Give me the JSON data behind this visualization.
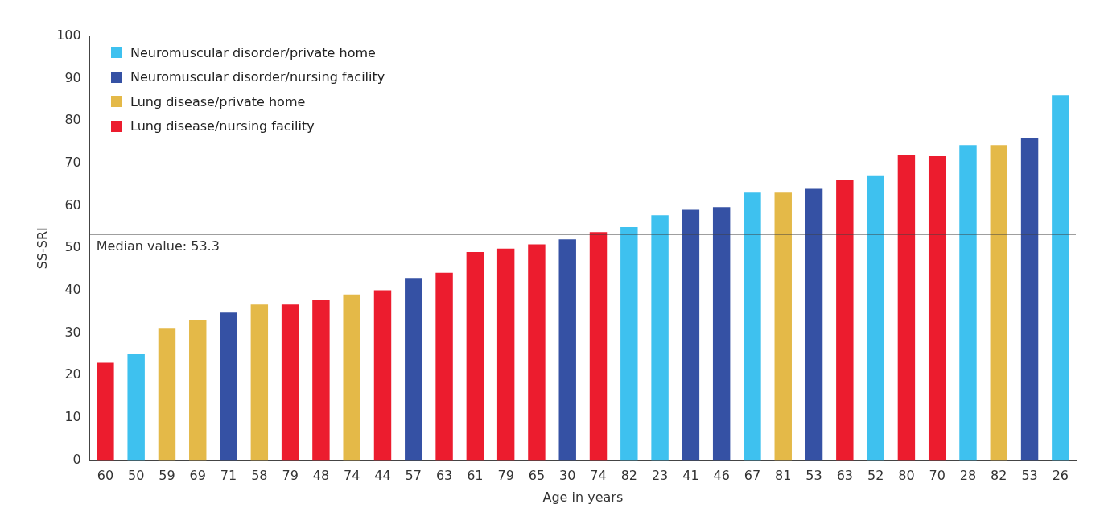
{
  "chart_data": {
    "type": "bar",
    "xlabel": "Age in years",
    "ylabel": "SS-SRI",
    "categories": [
      "60",
      "50",
      "59",
      "69",
      "71",
      "58",
      "79",
      "48",
      "74",
      "44",
      "57",
      "63",
      "61",
      "79",
      "65",
      "30",
      "74",
      "82",
      "23",
      "41",
      "46",
      "67",
      "81",
      "53",
      "63",
      "52",
      "80",
      "70",
      "28",
      "82",
      "53",
      "26"
    ],
    "series": [
      {
        "name": "Neuromuscular disorder/private home",
        "color": "#3ec1ef",
        "values": [
          null,
          25,
          null,
          null,
          null,
          null,
          null,
          null,
          null,
          null,
          null,
          null,
          null,
          null,
          null,
          null,
          null,
          55,
          57.8,
          null,
          null,
          63.1,
          null,
          null,
          null,
          67.2,
          null,
          null,
          74.3,
          null,
          null,
          86.1
        ]
      },
      {
        "name": "Neuromuscular disorder/nursing facility",
        "color": "#3551a4",
        "values": [
          null,
          null,
          null,
          null,
          34.8,
          null,
          null,
          null,
          null,
          null,
          43,
          null,
          null,
          null,
          null,
          52.1,
          null,
          null,
          null,
          59.1,
          59.7,
          null,
          null,
          64,
          null,
          null,
          null,
          null,
          null,
          null,
          76,
          null
        ]
      },
      {
        "name": "Lung disease/private home",
        "color": "#e4b948",
        "values": [
          null,
          null,
          31.2,
          33,
          null,
          36.7,
          null,
          null,
          39.1,
          null,
          null,
          null,
          null,
          null,
          null,
          null,
          null,
          null,
          null,
          null,
          null,
          null,
          63.1,
          null,
          null,
          null,
          null,
          null,
          null,
          74.3,
          null,
          null
        ]
      },
      {
        "name": "Lung disease/nursing facility",
        "color": "#ec1c2e",
        "values": [
          23,
          null,
          null,
          null,
          null,
          null,
          36.7,
          37.9,
          null,
          40.1,
          null,
          44.2,
          49.1,
          49.9,
          50.9,
          null,
          53.8,
          null,
          null,
          null,
          null,
          null,
          null,
          null,
          66,
          null,
          72.1,
          71.7,
          null,
          null,
          null,
          null
        ]
      }
    ],
    "ylim": [
      0,
      100
    ],
    "yticks": [
      0,
      10,
      20,
      30,
      40,
      50,
      60,
      70,
      80,
      90,
      100
    ],
    "ref_lines": [
      {
        "axis": "y",
        "value": 53.3,
        "label": "Median value: 53.3",
        "color": "#404040"
      }
    ],
    "grid": false,
    "legend": "top left"
  }
}
